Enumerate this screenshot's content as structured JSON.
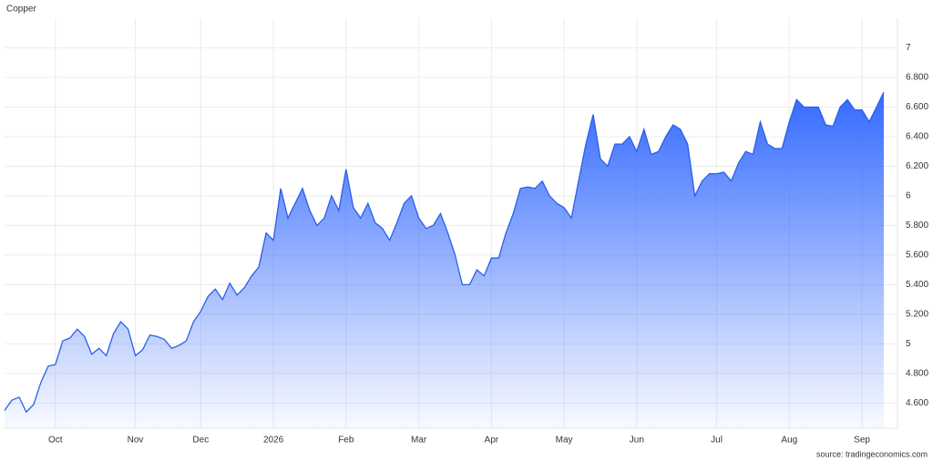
{
  "chart_data": {
    "type": "area",
    "title": "Copper",
    "source": "source: tradingeconomics.com",
    "color": "#2a5fe8",
    "grid": true,
    "ylim": [
      4.43,
      7.2
    ],
    "yticks": [
      {
        "value": 4.6,
        "label": "4.600"
      },
      {
        "value": 4.8,
        "label": "4.800"
      },
      5,
      {
        "value": 5.2,
        "label": "5.200"
      },
      {
        "value": 5.4,
        "label": "5.400"
      },
      {
        "value": 5.6,
        "label": "5.600"
      },
      {
        "value": 5.8,
        "label": "5.800"
      },
      6,
      {
        "value": 6.2,
        "label": "6.200"
      },
      {
        "value": 6.4,
        "label": "6.400"
      },
      {
        "value": 6.6,
        "label": "6.600"
      },
      {
        "value": 6.8,
        "label": "6.800"
      },
      7
    ],
    "categories": [
      null,
      null,
      null,
      null,
      null,
      null,
      null,
      "Oct",
      null,
      null,
      null,
      null,
      null,
      null,
      null,
      null,
      null,
      null,
      "Nov",
      null,
      null,
      null,
      null,
      null,
      null,
      null,
      null,
      "Dec",
      null,
      null,
      null,
      null,
      null,
      null,
      null,
      null,
      null,
      "2026",
      null,
      null,
      null,
      null,
      null,
      null,
      null,
      null,
      null,
      "Feb",
      null,
      null,
      null,
      null,
      null,
      null,
      null,
      null,
      null,
      "Mar",
      null,
      null,
      null,
      null,
      null,
      null,
      null,
      null,
      null,
      "Apr",
      null,
      null,
      null,
      null,
      null,
      null,
      null,
      null,
      null,
      "May",
      null,
      null,
      null,
      null,
      null,
      null,
      null,
      null,
      null,
      "Jun",
      null,
      null,
      null,
      null,
      null,
      null,
      null,
      null,
      null,
      null,
      "Jul",
      null,
      null,
      null,
      null,
      null,
      null,
      null,
      null,
      null,
      "Aug",
      null,
      null,
      null,
      null,
      null,
      null,
      null,
      null,
      null,
      "Sep",
      null,
      null,
      null
    ],
    "values": [
      4.55,
      4.62,
      4.64,
      4.54,
      4.59,
      4.74,
      4.85,
      4.86,
      5.02,
      5.04,
      5.1,
      5.05,
      4.93,
      4.97,
      4.92,
      5.07,
      5.15,
      5.1,
      4.92,
      4.96,
      5.06,
      5.05,
      5.03,
      4.97,
      4.99,
      5.02,
      5.15,
      5.22,
      5.32,
      5.37,
      5.3,
      5.41,
      5.33,
      5.38,
      5.46,
      5.52,
      5.75,
      5.7,
      6.05,
      5.85,
      5.95,
      6.05,
      5.9,
      5.8,
      5.85,
      6.0,
      5.9,
      6.18,
      5.92,
      5.85,
      5.95,
      5.82,
      5.78,
      5.7,
      5.82,
      5.95,
      6.0,
      5.85,
      5.78,
      5.8,
      5.88,
      5.75,
      5.6,
      5.4,
      5.4,
      5.5,
      5.46,
      5.58,
      5.58,
      5.75,
      5.88,
      6.05,
      6.06,
      6.05,
      6.1,
      6.0,
      5.95,
      5.92,
      5.85,
      6.1,
      6.35,
      6.55,
      6.25,
      6.2,
      6.35,
      6.35,
      6.4,
      6.3,
      6.45,
      6.28,
      6.3,
      6.4,
      6.48,
      6.45,
      6.35,
      6.0,
      6.1,
      6.15,
      6.15,
      6.16,
      6.1,
      6.22,
      6.3,
      6.28,
      6.5,
      6.35,
      6.32,
      6.32,
      6.5,
      6.65,
      6.6,
      6.6,
      6.6,
      6.48,
      6.47,
      6.6,
      6.65,
      6.58,
      6.58,
      6.5,
      6.6,
      6.7
    ]
  }
}
